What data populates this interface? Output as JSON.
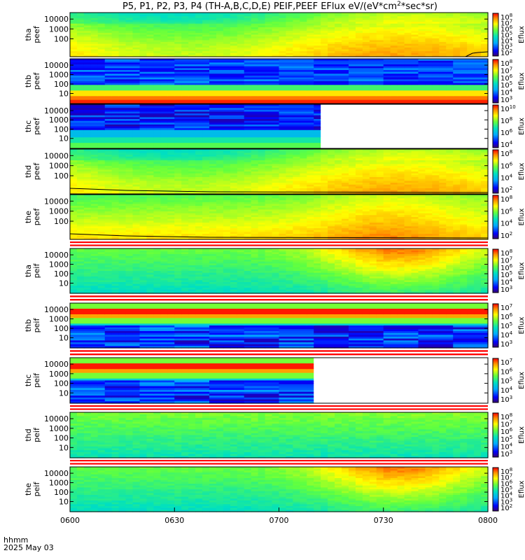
{
  "header": {
    "title": "P5, P1, P2, P3, P4 (TH-A,B,C,D,E) PEIF,PEEF EFlux eV/(eV*cm",
    "title_sup": "2",
    "title_tail": "*sec*sr)"
  },
  "footer": {
    "label_line1": "hhmm",
    "label_line2": "2025 May 03"
  },
  "colorbar_label": "Eflux",
  "chart_data": {
    "type": "heatmap",
    "description_units": "EFlux eV/(eV*cm^2*sec*sr)",
    "x_ticks": [
      "0600",
      "0630",
      "0700",
      "0730",
      "0800"
    ],
    "x_range_minutes": [
      0,
      120
    ],
    "panels": [
      {
        "probe": "tha",
        "product": "peef",
        "ylabel": [
          "tha",
          "peef"
        ],
        "y_ticks": [
          "10000",
          "1000",
          "100"
        ],
        "cbar_ticks": [
          [
            "10",
            "8"
          ],
          [
            "10",
            "7"
          ],
          [
            "10",
            "6"
          ],
          [
            "10",
            "5"
          ],
          [
            "10",
            "4"
          ],
          [
            "10",
            "3"
          ],
          [
            "10",
            "2"
          ]
        ],
        "pattern": "smooth_yellow_green",
        "data_end_fraction": 1.0,
        "line": "bottom_right_rise"
      },
      {
        "probe": "thb",
        "product": "peef",
        "ylabel": [
          "thb",
          "peef"
        ],
        "y_ticks": [
          "10000",
          "1000",
          "100",
          "10"
        ],
        "cbar_ticks": [
          [
            "10",
            "8"
          ],
          [
            "10",
            "7"
          ],
          [
            "10",
            "6"
          ],
          [
            "10",
            "5"
          ],
          [
            "10",
            "4"
          ],
          [
            "10",
            "3"
          ]
        ],
        "pattern": "striped_high_energy_blue",
        "data_end_fraction": 1.0,
        "line": "none"
      },
      {
        "probe": "thc",
        "product": "peef",
        "ylabel": [
          "thc",
          "peef"
        ],
        "y_ticks": [
          "10000",
          "1000",
          "100",
          "10"
        ],
        "cbar_ticks": [
          [
            "10",
            "10"
          ],
          [
            "10",
            "8"
          ],
          [
            "10",
            "6"
          ],
          [
            "10",
            "4"
          ]
        ],
        "pattern": "striped_low_energy_green",
        "data_end_fraction": 0.6,
        "line": "none"
      },
      {
        "probe": "thd",
        "product": "peef",
        "ylabel": [
          "thd",
          "peef"
        ],
        "y_ticks": [
          "10000",
          "1000",
          "100"
        ],
        "cbar_ticks": [
          [
            "10",
            "8"
          ],
          [
            "10",
            "6"
          ],
          [
            "10",
            "4"
          ],
          [
            "10",
            "2"
          ]
        ],
        "pattern": "smooth_yellow_green",
        "data_end_fraction": 1.0,
        "line": "low_flat"
      },
      {
        "probe": "the",
        "product": "peef",
        "ylabel": [
          "the",
          "peef"
        ],
        "y_ticks": [
          "10000",
          "1000",
          "100"
        ],
        "cbar_ticks": [
          [
            "10",
            "8"
          ],
          [
            "10",
            "6"
          ],
          [
            "10",
            "4"
          ],
          [
            "10",
            "2"
          ]
        ],
        "pattern": "smooth_orange_late",
        "data_end_fraction": 1.0,
        "line": "low_flat"
      },
      {
        "probe": "tha",
        "product": "peif",
        "ylabel": [
          "tha",
          "peif"
        ],
        "y_ticks": [
          "10000",
          "1000",
          "100",
          "10"
        ],
        "cbar_ticks": [
          [
            "10",
            "8"
          ],
          [
            "10",
            "7"
          ],
          [
            "10",
            "6"
          ],
          [
            "10",
            "5"
          ],
          [
            "10",
            "4"
          ],
          [
            "10",
            "3"
          ]
        ],
        "pattern": "smooth_green_yellow_late",
        "data_end_fraction": 1.0,
        "line": "none"
      },
      {
        "probe": "thb",
        "product": "peif",
        "ylabel": [
          "thb",
          "peif"
        ],
        "y_ticks": [
          "10000",
          "1000",
          "100",
          "10"
        ],
        "cbar_ticks": [
          [
            "10",
            "7"
          ],
          [
            "10",
            "6"
          ],
          [
            "10",
            "5"
          ],
          [
            "10",
            "4"
          ],
          [
            "10",
            "3"
          ]
        ],
        "pattern": "striped_mid_band",
        "data_end_fraction": 1.0,
        "line": "none"
      },
      {
        "probe": "thc",
        "product": "peif",
        "ylabel": [
          "thc",
          "peif"
        ],
        "y_ticks": [
          "10000",
          "1000",
          "100",
          "10"
        ],
        "cbar_ticks": [
          [
            "10",
            "7"
          ],
          [
            "10",
            "6"
          ],
          [
            "10",
            "5"
          ],
          [
            "10",
            "4"
          ],
          [
            "10",
            "3"
          ]
        ],
        "pattern": "striped_mid_band",
        "data_end_fraction": 0.583,
        "line": "none"
      },
      {
        "probe": "thd",
        "product": "peif",
        "ylabel": [
          "thd",
          "peif"
        ],
        "y_ticks": [
          "10000",
          "1000",
          "100",
          "10"
        ],
        "cbar_ticks": [
          [
            "10",
            "8"
          ],
          [
            "10",
            "7"
          ],
          [
            "10",
            "6"
          ],
          [
            "10",
            "5"
          ],
          [
            "10",
            "4"
          ],
          [
            "10",
            "3"
          ]
        ],
        "pattern": "smooth_cyan_green",
        "data_end_fraction": 1.0,
        "line": "none"
      },
      {
        "probe": "the",
        "product": "peif",
        "ylabel": [
          "the",
          "peif"
        ],
        "y_ticks": [
          "10000",
          "1000",
          "100",
          "10"
        ],
        "cbar_ticks": [
          [
            "10",
            "8"
          ],
          [
            "10",
            "7"
          ],
          [
            "10",
            "6"
          ],
          [
            "10",
            "5"
          ],
          [
            "10",
            "4"
          ],
          [
            "10",
            "3"
          ],
          [
            "10",
            "2"
          ]
        ],
        "pattern": "smooth_green_yellow_late",
        "data_end_fraction": 1.0,
        "line": "none"
      }
    ]
  }
}
